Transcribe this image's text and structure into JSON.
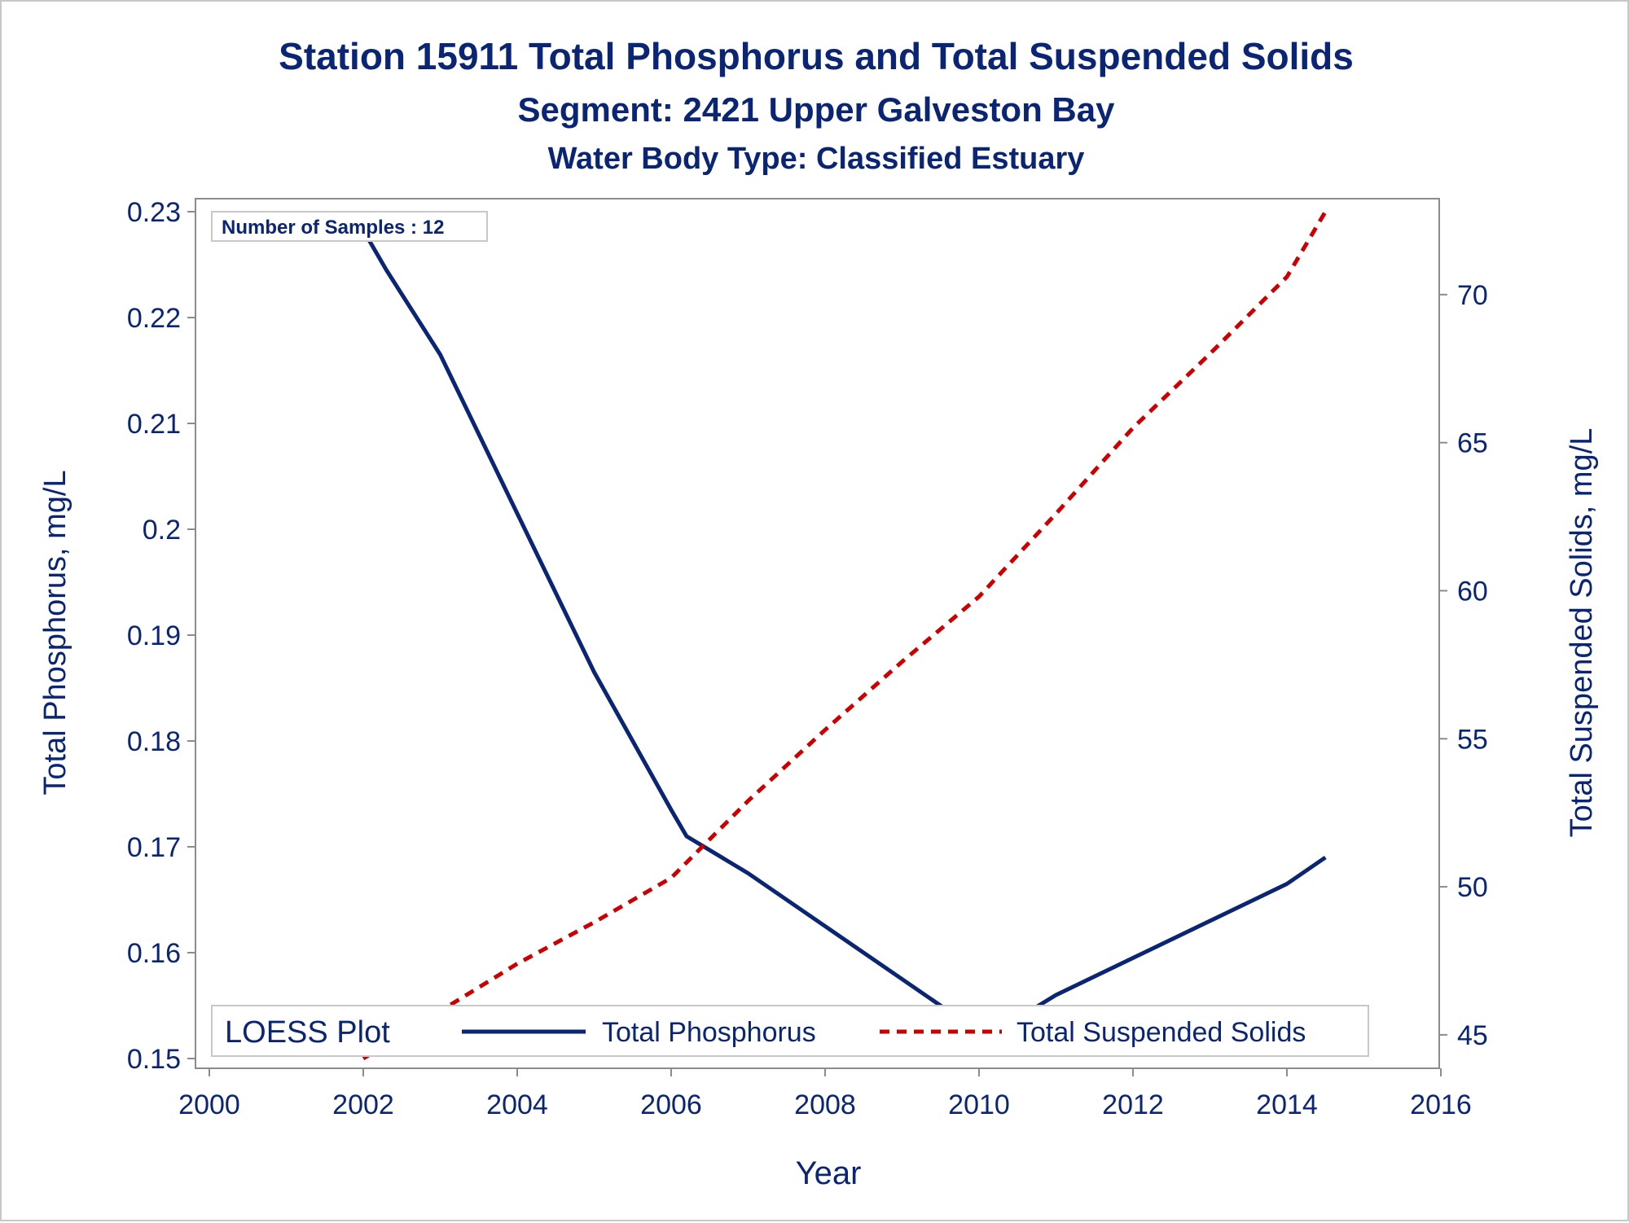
{
  "colors": {
    "text": "#0b2575",
    "phosphorus": "#0b2575",
    "tss": "#cc0000",
    "axis": "#8c8c8c",
    "legend_border": "#c8c8c8"
  },
  "chart_data": {
    "type": "line",
    "title": "Station 15911  Total Phosphorus and Total Suspended Solids",
    "subtitle1": "Segment: 2421  Upper Galveston Bay",
    "subtitle2": "Water Body Type: Classified Estuary",
    "xlabel": "Year",
    "ylabel_left": "Total Phosphorus, mg/L",
    "ylabel_right": "Total Suspended Solids, mg/L",
    "xlim": [
      2000,
      2016
    ],
    "ylim_left": [
      0.15,
      0.23
    ],
    "ylim_right": [
      44.2,
      72.8
    ],
    "x_ticks": [
      "2000",
      "2002",
      "2004",
      "2006",
      "2008",
      "2010",
      "2012",
      "2014",
      "2016"
    ],
    "y_ticks_left": [
      "0.15",
      "0.16",
      "0.17",
      "0.18",
      "0.19",
      "0.2",
      "0.21",
      "0.22",
      "0.23"
    ],
    "y_ticks_right": [
      "45",
      "50",
      "55",
      "60",
      "65",
      "70"
    ],
    "annotation": "Number of Samples : 12",
    "legend": {
      "title": "LOESS Plot",
      "placement": "bottom",
      "entries": [
        "Total Phosphorus",
        "Total Suspended Solids"
      ]
    },
    "series": [
      {
        "name": "Total Phosphorus",
        "axis": "left",
        "style": "solid",
        "x": [
          2001.9,
          2002.3,
          2003,
          2004,
          2005,
          2006,
          2006.2,
          2007,
          2008,
          2009,
          2010.1,
          2011,
          2012,
          2013,
          2014,
          2014.5
        ],
        "y": [
          0.2295,
          0.2245,
          0.2165,
          0.2015,
          0.1865,
          0.1735,
          0.171,
          0.1675,
          0.1625,
          0.1575,
          0.152,
          0.156,
          0.1595,
          0.163,
          0.1665,
          0.169
        ]
      },
      {
        "name": "Total Suspended Solids",
        "axis": "right",
        "style": "dashed",
        "x": [
          2002,
          2003,
          2004,
          2005,
          2006,
          2007,
          2008,
          2009,
          2010,
          2011,
          2012,
          2013,
          2014,
          2014.5
        ],
        "y": [
          44.2,
          45.8,
          47.4,
          48.8,
          50.3,
          52.9,
          55.3,
          57.6,
          59.8,
          62.6,
          65.5,
          68.0,
          70.6,
          72.8
        ]
      }
    ]
  }
}
